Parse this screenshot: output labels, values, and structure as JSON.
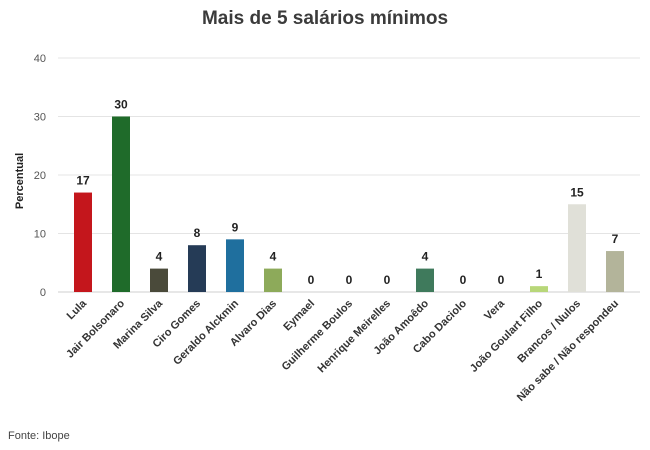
{
  "chart_data": {
    "type": "bar",
    "title": "Mais de 5 salários mínimos",
    "ylabel": "Percentual",
    "xlabel": "",
    "ylim": [
      0,
      40
    ],
    "yticks": [
      0,
      10,
      20,
      30,
      40
    ],
    "grid": true,
    "categories": [
      "Lula",
      "Jair Bolsonaro",
      "Marina Silva",
      "Ciro Gomes",
      "Geraldo Alckmin",
      "Alvaro Dias",
      "Eymael",
      "Guilherme Boulos",
      "Henrique Meirelles",
      "João Amoêdo",
      "Cabo Daciolo",
      "Vera",
      "João Goulart Filho",
      "Brancos / Nulos",
      "Não sabe / Não respondeu"
    ],
    "values": [
      17,
      30,
      4,
      8,
      9,
      4,
      0,
      0,
      0,
      4,
      0,
      0,
      1,
      15,
      7
    ],
    "colors": [
      "#c4161c",
      "#1f6b2a",
      "#4a4a3a",
      "#253b56",
      "#1f6f9e",
      "#8daa5a",
      "#cccccc",
      "#cccccc",
      "#cccccc",
      "#3f7a5c",
      "#cccccc",
      "#cccccc",
      "#b8d779",
      "#e0e0d8",
      "#b3b49a"
    ]
  },
  "source": "Fonte: Ibope"
}
